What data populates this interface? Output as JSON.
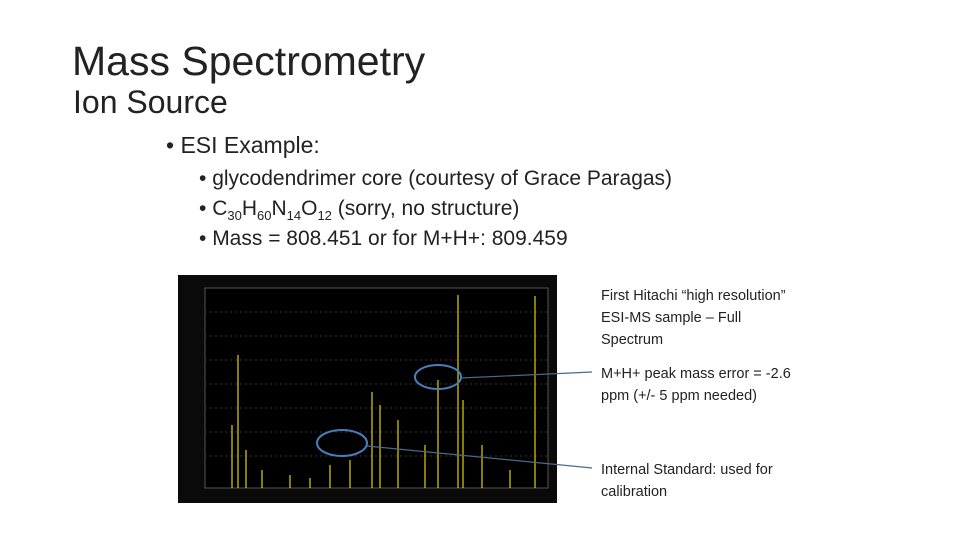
{
  "header": {
    "title": "Mass Spectrometry",
    "subtitle": "Ion Source"
  },
  "bullet": "ESI Example:",
  "sub_bullets": {
    "first": "glycodendrimer core (courtesy of Grace Paragas)",
    "formula": [
      "C",
      "30",
      "H",
      "60",
      "N",
      "14",
      "O",
      "12",
      " (sorry, no structure)"
    ],
    "third": "Mass = 808.451 or for M+H+: 809.459"
  },
  "annotations": [
    "First Hitachi “high resolution” ESI-MS sample – Full Spectrum",
    "M+H+ peak mass error = -2.6 ppm (+/- 5 ppm needed)",
    "Internal Standard: used for calibration"
  ]
}
